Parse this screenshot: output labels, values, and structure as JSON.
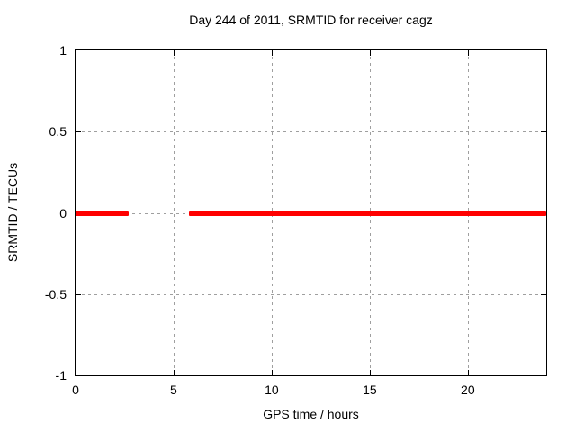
{
  "chart_data": {
    "type": "line",
    "title": "Day 244 of 2011, SRMTID for receiver cagz",
    "xlabel": "GPS time / hours",
    "ylabel": "SRMTID / TECUs",
    "xlim": [
      0,
      24
    ],
    "ylim": [
      -1,
      1
    ],
    "xticks": [
      0,
      5,
      10,
      15,
      20
    ],
    "yticks": [
      1,
      0.5,
      0,
      -0.5,
      -1
    ],
    "grid": true,
    "legend": "none",
    "series": [
      {
        "name": "SRMTID",
        "y_value": 0,
        "segments": [
          {
            "from": 0,
            "to": 2.7
          },
          {
            "from": 5.8,
            "to": 24
          }
        ]
      }
    ],
    "colors": {
      "line": "#ff0000",
      "grid": "#9f9f9f",
      "border": "#000000",
      "background": "#ffffff",
      "text": "#000000"
    }
  }
}
